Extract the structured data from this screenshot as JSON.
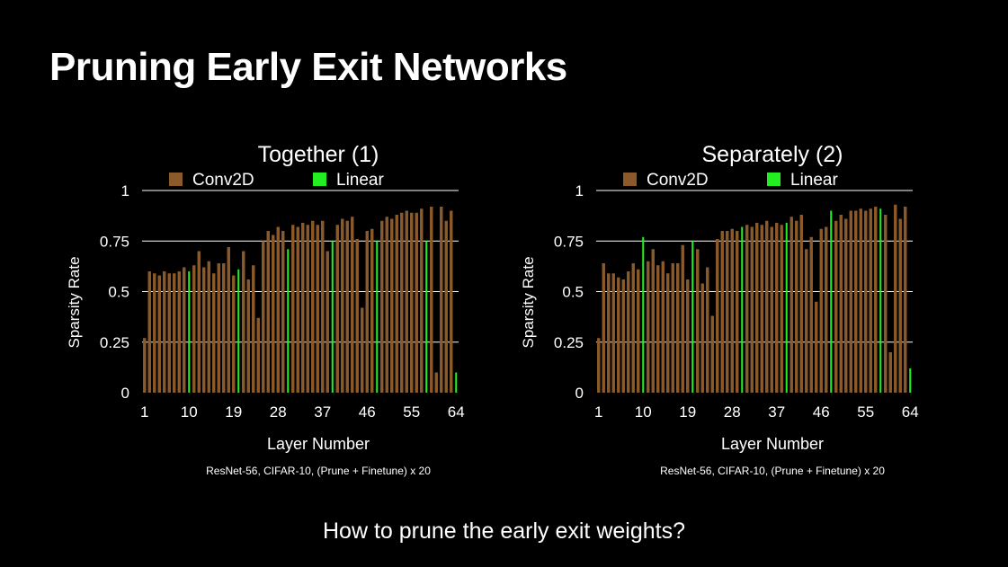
{
  "slide": {
    "title": "Pruning Early Exit Networks",
    "question": "How to prune the early exit weights?"
  },
  "colors": {
    "background": "#000000",
    "text": "#ffffff",
    "conv2d": "#8b5a2b",
    "linear": "#22ee22",
    "grid": "#ffffff"
  },
  "chart_data": [
    {
      "type": "bar",
      "title": "Together (1)",
      "xlabel": "Layer Number",
      "ylabel": "Sparsity Rate",
      "caption": "ResNet-56, CIFAR-10, (Prune + Finetune) x 20",
      "ylim": [
        0,
        1
      ],
      "yticks": [
        "0",
        "0.25",
        "0.5",
        "0.75",
        "1"
      ],
      "xticks": [
        1,
        10,
        19,
        28,
        37,
        46,
        55,
        64
      ],
      "legend": {
        "placement": "top",
        "entries": [
          "Conv2D",
          "Linear"
        ]
      },
      "grid": true,
      "series": [
        {
          "name": "Conv2D",
          "layers": [
            1,
            2,
            3,
            4,
            5,
            6,
            7,
            8,
            9,
            11,
            12,
            13,
            14,
            15,
            16,
            17,
            18,
            19,
            21,
            22,
            23,
            24,
            25,
            26,
            27,
            28,
            29,
            31,
            32,
            33,
            34,
            35,
            36,
            37,
            38,
            40,
            41,
            42,
            43,
            44,
            45,
            46,
            47,
            49,
            50,
            51,
            52,
            53,
            54,
            55,
            56,
            57,
            59,
            60,
            61,
            62,
            63
          ],
          "values": [
            0.27,
            0.6,
            0.59,
            0.58,
            0.6,
            0.59,
            0.59,
            0.6,
            0.62,
            0.63,
            0.7,
            0.62,
            0.65,
            0.59,
            0.64,
            0.64,
            0.72,
            0.58,
            0.7,
            0.56,
            0.63,
            0.37,
            0.75,
            0.8,
            0.78,
            0.82,
            0.8,
            0.83,
            0.82,
            0.84,
            0.83,
            0.85,
            0.83,
            0.85,
            0.7,
            0.83,
            0.86,
            0.85,
            0.87,
            0.76,
            0.42,
            0.8,
            0.81,
            0.85,
            0.87,
            0.86,
            0.88,
            0.89,
            0.9,
            0.89,
            0.89,
            0.91,
            0.92,
            0.1,
            0.92,
            0.85,
            0.9
          ]
        },
        {
          "name": "Linear",
          "layers": [
            10,
            20,
            30,
            39,
            48,
            58,
            64
          ],
          "values": [
            0.6,
            0.61,
            0.71,
            0.75,
            0.75,
            0.75,
            0.1
          ]
        }
      ]
    },
    {
      "type": "bar",
      "title": "Separately (2)",
      "xlabel": "Layer Number",
      "ylabel": "Sparsity Rate",
      "caption": "ResNet-56, CIFAR-10, (Prune + Finetune) x 20",
      "ylim": [
        0,
        1
      ],
      "yticks": [
        "0",
        "0.25",
        "0.5",
        "0.75",
        "1"
      ],
      "xticks": [
        1,
        10,
        19,
        28,
        37,
        46,
        55,
        64
      ],
      "legend": {
        "placement": "top",
        "entries": [
          "Conv2D",
          "Linear"
        ]
      },
      "grid": true,
      "series": [
        {
          "name": "Conv2D",
          "layers": [
            1,
            2,
            3,
            4,
            5,
            6,
            7,
            8,
            9,
            11,
            12,
            13,
            14,
            15,
            16,
            17,
            18,
            19,
            21,
            22,
            23,
            24,
            25,
            26,
            27,
            28,
            29,
            31,
            32,
            33,
            34,
            35,
            36,
            37,
            38,
            40,
            41,
            42,
            43,
            44,
            45,
            46,
            47,
            49,
            50,
            51,
            52,
            53,
            54,
            55,
            56,
            57,
            59,
            60,
            61,
            62,
            63
          ],
          "values": [
            0.27,
            0.64,
            0.59,
            0.59,
            0.57,
            0.56,
            0.6,
            0.64,
            0.61,
            0.65,
            0.71,
            0.63,
            0.65,
            0.59,
            0.64,
            0.64,
            0.73,
            0.56,
            0.71,
            0.54,
            0.62,
            0.38,
            0.76,
            0.8,
            0.8,
            0.81,
            0.8,
            0.83,
            0.82,
            0.84,
            0.83,
            0.85,
            0.82,
            0.84,
            0.83,
            0.87,
            0.85,
            0.88,
            0.71,
            0.77,
            0.45,
            0.81,
            0.82,
            0.85,
            0.88,
            0.86,
            0.9,
            0.9,
            0.91,
            0.9,
            0.91,
            0.92,
            0.88,
            0.2,
            0.93,
            0.86,
            0.92
          ]
        },
        {
          "name": "Linear",
          "layers": [
            10,
            20,
            30,
            39,
            48,
            58,
            64
          ],
          "values": [
            0.77,
            0.75,
            0.82,
            0.84,
            0.9,
            0.91,
            0.12
          ]
        }
      ]
    }
  ]
}
